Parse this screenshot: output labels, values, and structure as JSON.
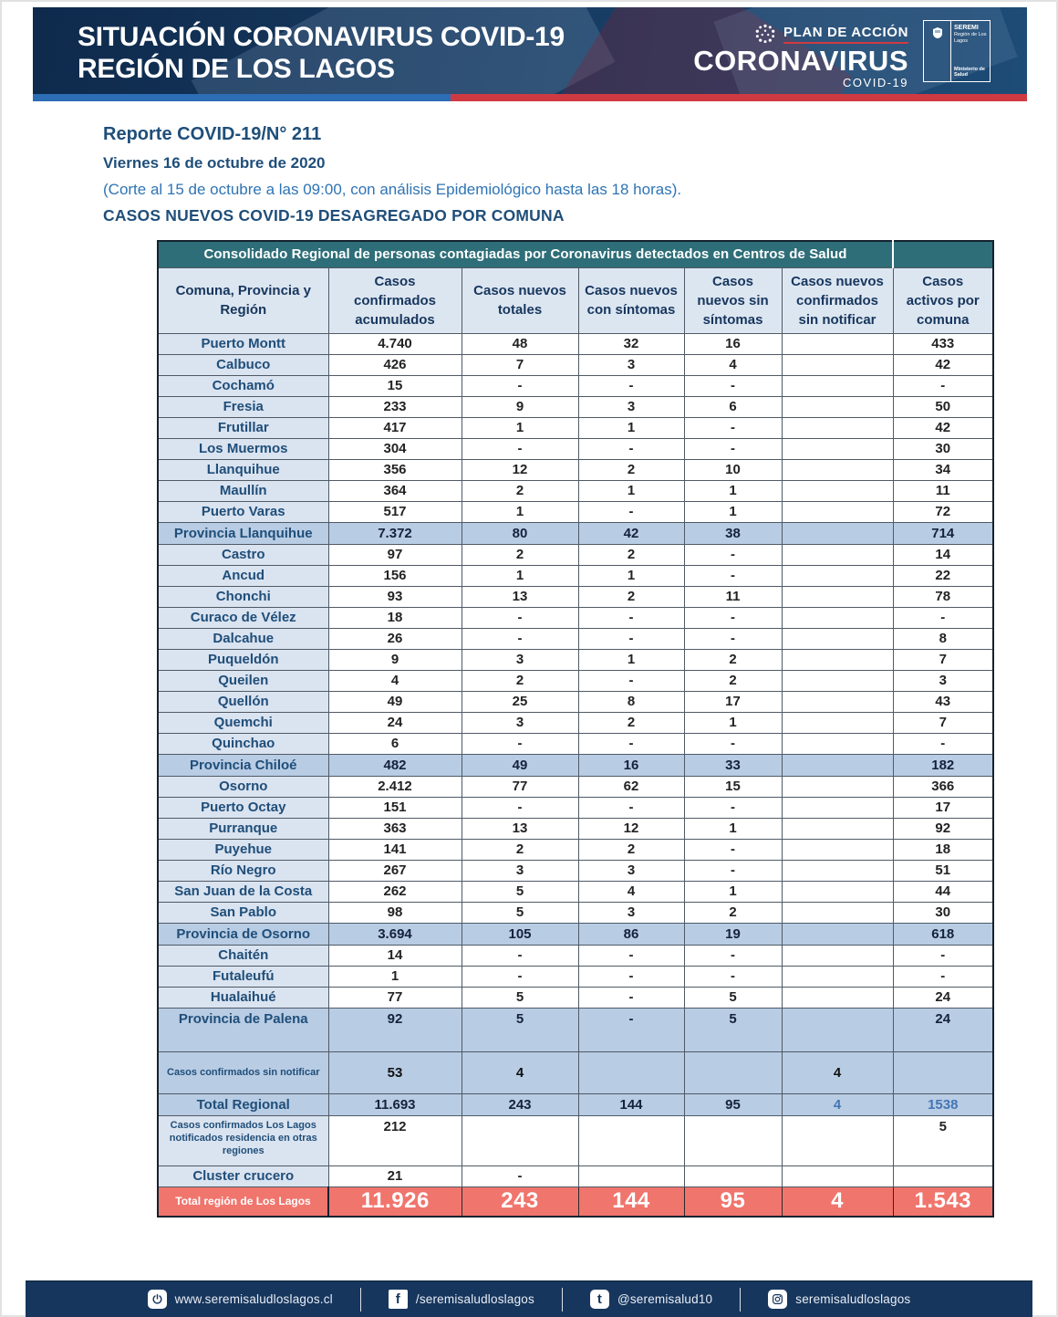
{
  "banner": {
    "title_line1": "SITUACIÓN CORONAVIRUS COVID-19",
    "title_line2": "REGIÓN DE LOS LAGOS",
    "plan_label": "PLAN DE ACCIÓN",
    "plan_brand": "CORONAVIRUS",
    "plan_sub": "COVID-19",
    "seremi_line1": "SEREMI",
    "seremi_line2": "Región de Los Lagos",
    "seremi_line3": "Ministerio de Salud"
  },
  "report": {
    "title": "Reporte COVID-19/N° 211",
    "date": "Viernes 16 de octubre de 2020",
    "note": "(Corte al 15 de octubre a las 09:00, con análisis Epidemiológico hasta las 18 horas).",
    "subtitle": "CASOS NUEVOS COVID-19 DESAGREGADO POR COMUNA"
  },
  "colors": {
    "banner_navy": "#17395f",
    "stripe_blue": "#2d6db5",
    "stripe_red": "#cf3a42",
    "table_title_teal": "#2e6e78",
    "header_cell_bg": "#dce6f1",
    "label_cell_bg": "#dae3f0",
    "province_row_bg": "#b8cce4",
    "grand_total_red": "#f0756d",
    "text_navy": "#1f4e79",
    "note_blue": "#2e74b5",
    "footer_navy": "#17365d"
  },
  "table": {
    "title": "Consolidado Regional de personas contagiadas por Coronavirus detectados en Centros de Salud",
    "columns": [
      "Comuna, Provincia y Región",
      "Casos confirmados acumulados",
      "Casos nuevos totales",
      "Casos nuevos con síntomas",
      "Casos nuevos sin síntomas",
      "Casos nuevos confirmados sin notificar",
      "Casos activos por comuna"
    ],
    "rows": [
      {
        "label": "Puerto Montt",
        "type": "comuna",
        "values": [
          "4.740",
          "48",
          "32",
          "16",
          "",
          "433"
        ]
      },
      {
        "label": "Calbuco",
        "type": "comuna",
        "values": [
          "426",
          "7",
          "3",
          "4",
          "",
          "42"
        ]
      },
      {
        "label": "Cochamó",
        "type": "comuna",
        "values": [
          "15",
          "-",
          "-",
          "-",
          "",
          "-"
        ]
      },
      {
        "label": "Fresia",
        "type": "comuna",
        "values": [
          "233",
          "9",
          "3",
          "6",
          "",
          "50"
        ]
      },
      {
        "label": "Frutillar",
        "type": "comuna",
        "values": [
          "417",
          "1",
          "1",
          "-",
          "",
          "42"
        ]
      },
      {
        "label": "Los Muermos",
        "type": "comuna",
        "values": [
          "304",
          "-",
          "-",
          "-",
          "",
          "30"
        ]
      },
      {
        "label": "Llanquihue",
        "type": "comuna",
        "values": [
          "356",
          "12",
          "2",
          "10",
          "",
          "34"
        ]
      },
      {
        "label": "Maullín",
        "type": "comuna",
        "values": [
          "364",
          "2",
          "1",
          "1",
          "",
          "11"
        ]
      },
      {
        "label": "Puerto Varas",
        "type": "comuna",
        "values": [
          "517",
          "1",
          "-",
          "1",
          "",
          "72"
        ]
      },
      {
        "label": "Provincia Llanquihue",
        "type": "province",
        "values": [
          "7.372",
          "80",
          "42",
          "38",
          "",
          "714"
        ]
      },
      {
        "label": "Castro",
        "type": "comuna",
        "values": [
          "97",
          "2",
          "2",
          "-",
          "",
          "14"
        ]
      },
      {
        "label": "Ancud",
        "type": "comuna",
        "values": [
          "156",
          "1",
          "1",
          "-",
          "",
          "22"
        ]
      },
      {
        "label": "Chonchi",
        "type": "comuna",
        "values": [
          "93",
          "13",
          "2",
          "11",
          "",
          "78"
        ]
      },
      {
        "label": "Curaco de Vélez",
        "type": "comuna",
        "values": [
          "18",
          "-",
          "-",
          "-",
          "",
          "-"
        ]
      },
      {
        "label": "Dalcahue",
        "type": "comuna",
        "values": [
          "26",
          "-",
          "-",
          "-",
          "",
          "8"
        ]
      },
      {
        "label": "Puqueldón",
        "type": "comuna",
        "values": [
          "9",
          "3",
          "1",
          "2",
          "",
          "7"
        ]
      },
      {
        "label": "Queilen",
        "type": "comuna",
        "values": [
          "4",
          "2",
          "-",
          "2",
          "",
          "3"
        ]
      },
      {
        "label": "Quellón",
        "type": "comuna",
        "values": [
          "49",
          "25",
          "8",
          "17",
          "",
          "43"
        ]
      },
      {
        "label": "Quemchi",
        "type": "comuna",
        "values": [
          "24",
          "3",
          "2",
          "1",
          "",
          "7"
        ]
      },
      {
        "label": "Quinchao",
        "type": "comuna",
        "values": [
          "6",
          "-",
          "-",
          "-",
          "",
          "-"
        ]
      },
      {
        "label": "Provincia Chiloé",
        "type": "province",
        "values": [
          "482",
          "49",
          "16",
          "33",
          "",
          "182"
        ]
      },
      {
        "label": "Osorno",
        "type": "comuna",
        "values": [
          "2.412",
          "77",
          "62",
          "15",
          "",
          "366"
        ]
      },
      {
        "label": "Puerto Octay",
        "type": "comuna",
        "values": [
          "151",
          "-",
          "-",
          "-",
          "",
          "17"
        ]
      },
      {
        "label": "Purranque",
        "type": "comuna",
        "values": [
          "363",
          "13",
          "12",
          "1",
          "",
          "92"
        ]
      },
      {
        "label": "Puyehue",
        "type": "comuna",
        "values": [
          "141",
          "2",
          "2",
          "-",
          "",
          "18"
        ]
      },
      {
        "label": "Río Negro",
        "type": "comuna",
        "values": [
          "267",
          "3",
          "3",
          "-",
          "",
          "51"
        ]
      },
      {
        "label": "San Juan de la Costa",
        "type": "comuna",
        "values": [
          "262",
          "5",
          "4",
          "1",
          "",
          "44"
        ]
      },
      {
        "label": "San Pablo",
        "type": "comuna",
        "values": [
          "98",
          "5",
          "3",
          "2",
          "",
          "30"
        ]
      },
      {
        "label": "Provincia de Osorno",
        "type": "province",
        "values": [
          "3.694",
          "105",
          "86",
          "19",
          "",
          "618"
        ]
      },
      {
        "label": "Chaitén",
        "type": "comuna",
        "values": [
          "14",
          "-",
          "-",
          "-",
          "",
          "-"
        ]
      },
      {
        "label": "Futaleufú",
        "type": "comuna",
        "values": [
          "1",
          "-",
          "-",
          "-",
          "",
          "-"
        ]
      },
      {
        "label": "Hualaihué",
        "type": "comuna",
        "values": [
          "77",
          "5",
          "-",
          "5",
          "",
          "24"
        ]
      },
      {
        "label": "Provincia de Palena",
        "type": "province-tall",
        "values": [
          "92",
          "5",
          "-",
          "5",
          "",
          "24"
        ]
      },
      {
        "label": "Casos confirmados sin notificar",
        "type": "note-row",
        "values": [
          "53",
          "4",
          "",
          "",
          "4",
          ""
        ]
      },
      {
        "label": "Total Regional",
        "type": "total",
        "values": [
          "11.693",
          "243",
          "144",
          "95",
          "4",
          "1538"
        ]
      },
      {
        "label": "Casos confirmados Los Lagos notificados residencia en otras regiones",
        "type": "note-row-white",
        "values": [
          "212",
          "",
          "",
          "",
          "",
          "5"
        ]
      },
      {
        "label": "Cluster crucero",
        "type": "comuna",
        "values": [
          "21",
          "-",
          "",
          "",
          "",
          ""
        ]
      },
      {
        "label": "Total región de Los Lagos",
        "type": "grand",
        "values": [
          "11.926",
          "243",
          "144",
          "95",
          "4",
          "1.543"
        ]
      }
    ]
  },
  "footer": {
    "items": [
      {
        "icon": "website-icon",
        "text": "www.seremisaludloslagos.cl"
      },
      {
        "icon": "facebook-icon",
        "text": "/seremisaludloslagos"
      },
      {
        "icon": "twitter-icon",
        "text": "@seremisalud10"
      },
      {
        "icon": "instagram-icon",
        "text": "seremisaludloslagos"
      }
    ]
  }
}
